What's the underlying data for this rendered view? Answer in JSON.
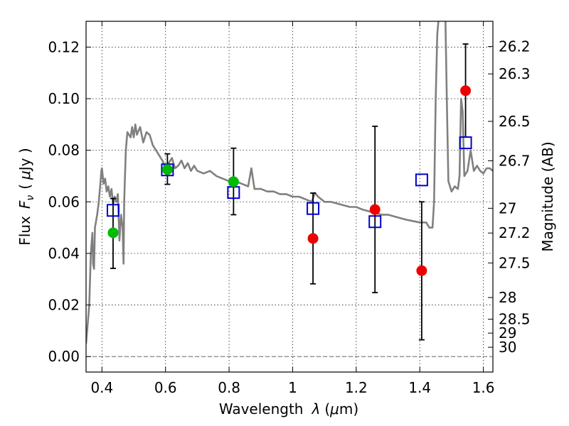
{
  "chart_data": {
    "type": "scatter",
    "xlabel_text": "Wavelength",
    "xlabel_symbol": "λ",
    "xlabel_unit_open": "(",
    "xlabel_unit_mu": "μ",
    "xlabel_unit_rest": "m)",
    "ylabel_text": "Flux",
    "ylabel_symbol": "F",
    "ylabel_subscript": "ν",
    "ylabel_unit_open": "(",
    "ylabel_unit_mu": "μ",
    "ylabel_unit_rest": "Jy )",
    "y2label": "Magnitude (AB)",
    "xlim": [
      0.35,
      1.63
    ],
    "ylim": [
      -0.006,
      0.13
    ],
    "xticks": [
      {
        "value": 0.4,
        "label": "0.4"
      },
      {
        "value": 0.6,
        "label": "0.6"
      },
      {
        "value": 0.8,
        "label": "0.8"
      },
      {
        "value": 1.0,
        "label": "1"
      },
      {
        "value": 1.2,
        "label": "1.2"
      },
      {
        "value": 1.4,
        "label": "1.4"
      },
      {
        "value": 1.6,
        "label": "1.6"
      }
    ],
    "yticks": [
      {
        "value": 0.0,
        "label": "0.00"
      },
      {
        "value": 0.02,
        "label": "0.02"
      },
      {
        "value": 0.04,
        "label": "0.04"
      },
      {
        "value": 0.06,
        "label": "0.06"
      },
      {
        "value": 0.08,
        "label": "0.08"
      },
      {
        "value": 0.1,
        "label": "0.10"
      },
      {
        "value": 0.12,
        "label": "0.12"
      }
    ],
    "mag_ticks": [
      {
        "flux": 0.1202,
        "label": "26.2"
      },
      {
        "flux": 0.1096,
        "label": "26.3"
      },
      {
        "flux": 0.0912,
        "label": "26.5"
      },
      {
        "flux": 0.0759,
        "label": "26.7"
      },
      {
        "flux": 0.0575,
        "label": "27"
      },
      {
        "flux": 0.0479,
        "label": "27.2"
      },
      {
        "flux": 0.0363,
        "label": "27.5"
      },
      {
        "flux": 0.0229,
        "label": "28"
      },
      {
        "flux": 0.0145,
        "label": "28.5"
      },
      {
        "flux": 0.0091,
        "label": "29"
      },
      {
        "flux": 0.0036,
        "label": "30"
      }
    ],
    "grid": true,
    "colors": {
      "model": "#808080",
      "green_points": "#00bb00",
      "red_points": "#ee0000",
      "model_squares": "#0000cc",
      "errorbars": "#000000"
    },
    "series": [
      {
        "kind": "line",
        "points": [
          [
            0.35,
            0.005
          ],
          [
            0.36,
            0.02
          ],
          [
            0.365,
            0.04
          ],
          [
            0.37,
            0.048
          ],
          [
            0.372,
            0.036
          ],
          [
            0.375,
            0.034
          ],
          [
            0.378,
            0.05
          ],
          [
            0.385,
            0.055
          ],
          [
            0.39,
            0.06
          ],
          [
            0.395,
            0.067
          ],
          [
            0.398,
            0.072
          ],
          [
            0.4,
            0.073
          ],
          [
            0.405,
            0.067
          ],
          [
            0.41,
            0.069
          ],
          [
            0.415,
            0.064
          ],
          [
            0.42,
            0.066
          ],
          [
            0.425,
            0.062
          ],
          [
            0.43,
            0.065
          ],
          [
            0.435,
            0.059
          ],
          [
            0.44,
            0.062
          ],
          [
            0.445,
            0.06
          ],
          [
            0.45,
            0.063
          ],
          [
            0.455,
            0.045
          ],
          [
            0.46,
            0.055
          ],
          [
            0.465,
            0.05
          ],
          [
            0.468,
            0.036
          ],
          [
            0.47,
            0.06
          ],
          [
            0.475,
            0.08
          ],
          [
            0.48,
            0.087
          ],
          [
            0.49,
            0.085
          ],
          [
            0.495,
            0.089
          ],
          [
            0.5,
            0.085
          ],
          [
            0.505,
            0.09
          ],
          [
            0.51,
            0.086
          ],
          [
            0.52,
            0.089
          ],
          [
            0.53,
            0.083
          ],
          [
            0.54,
            0.087
          ],
          [
            0.55,
            0.086
          ],
          [
            0.56,
            0.082
          ],
          [
            0.57,
            0.08
          ],
          [
            0.58,
            0.078
          ],
          [
            0.59,
            0.076
          ],
          [
            0.6,
            0.073
          ],
          [
            0.61,
            0.075
          ],
          [
            0.62,
            0.077
          ],
          [
            0.63,
            0.073
          ],
          [
            0.64,
            0.074
          ],
          [
            0.65,
            0.076
          ],
          [
            0.66,
            0.073
          ],
          [
            0.67,
            0.075
          ],
          [
            0.68,
            0.072
          ],
          [
            0.69,
            0.074
          ],
          [
            0.7,
            0.072
          ],
          [
            0.72,
            0.071
          ],
          [
            0.74,
            0.072
          ],
          [
            0.76,
            0.07
          ],
          [
            0.78,
            0.069
          ],
          [
            0.8,
            0.068
          ],
          [
            0.82,
            0.068
          ],
          [
            0.84,
            0.067
          ],
          [
            0.86,
            0.066
          ],
          [
            0.87,
            0.073
          ],
          [
            0.88,
            0.065
          ],
          [
            0.9,
            0.065
          ],
          [
            0.92,
            0.064
          ],
          [
            0.94,
            0.064
          ],
          [
            0.96,
            0.063
          ],
          [
            0.98,
            0.063
          ],
          [
            1.0,
            0.062
          ],
          [
            1.02,
            0.062
          ],
          [
            1.04,
            0.061
          ],
          [
            1.06,
            0.06
          ],
          [
            1.07,
            0.0635
          ],
          [
            1.08,
            0.062
          ],
          [
            1.1,
            0.06
          ],
          [
            1.12,
            0.06
          ],
          [
            1.15,
            0.059
          ],
          [
            1.18,
            0.058
          ],
          [
            1.2,
            0.058
          ],
          [
            1.22,
            0.057
          ],
          [
            1.25,
            0.056
          ],
          [
            1.28,
            0.055
          ],
          [
            1.3,
            0.055
          ],
          [
            1.33,
            0.054
          ],
          [
            1.36,
            0.053
          ],
          [
            1.4,
            0.052
          ],
          [
            1.42,
            0.052
          ],
          [
            1.43,
            0.05
          ],
          [
            1.44,
            0.05
          ],
          [
            1.445,
            0.06
          ],
          [
            1.45,
            0.1
          ],
          [
            1.455,
            0.125
          ],
          [
            1.46,
            0.132
          ],
          [
            1.47,
            0.132
          ],
          [
            1.48,
            0.135
          ],
          [
            1.485,
            0.1
          ],
          [
            1.49,
            0.068
          ],
          [
            1.5,
            0.064
          ],
          [
            1.51,
            0.066
          ],
          [
            1.52,
            0.065
          ],
          [
            1.525,
            0.07
          ],
          [
            1.53,
            0.1
          ],
          [
            1.535,
            0.095
          ],
          [
            1.54,
            0.07
          ],
          [
            1.55,
            0.072
          ],
          [
            1.56,
            0.08
          ],
          [
            1.57,
            0.072
          ],
          [
            1.58,
            0.074
          ],
          [
            1.59,
            0.072
          ],
          [
            1.6,
            0.071
          ],
          [
            1.61,
            0.073
          ],
          [
            1.62,
            0.073
          ],
          [
            1.63,
            0.072
          ]
        ]
      },
      {
        "kind": "errorbar",
        "points": [
          {
            "x": 0.435,
            "y": 0.048,
            "ylo": 0.0342,
            "yhi": 0.0613
          },
          {
            "x": 0.606,
            "y": 0.0725,
            "ylo": 0.0668,
            "yhi": 0.0786
          },
          {
            "x": 0.814,
            "y": 0.0678,
            "ylo": 0.055,
            "yhi": 0.0808
          },
          {
            "x": 1.064,
            "y": 0.0458,
            "ylo": 0.0282,
            "yhi": 0.0634
          },
          {
            "x": 1.259,
            "y": 0.057,
            "ylo": 0.0248,
            "yhi": 0.0893
          },
          {
            "x": 1.406,
            "y": 0.0333,
            "ylo": 0.0065,
            "yhi": 0.06
          },
          {
            "x": 1.544,
            "y": 0.1031,
            "ylo": 0.0851,
            "yhi": 0.1212
          }
        ]
      },
      {
        "kind": "scatter-green",
        "points": [
          [
            0.435,
            0.048
          ],
          [
            0.606,
            0.0725
          ],
          [
            0.814,
            0.0678
          ]
        ]
      },
      {
        "kind": "scatter-red",
        "points": [
          [
            1.064,
            0.0458
          ],
          [
            1.259,
            0.057
          ],
          [
            1.406,
            0.0333
          ],
          [
            1.544,
            0.1031
          ]
        ]
      },
      {
        "kind": "squares",
        "points": [
          [
            0.435,
            0.0567
          ],
          [
            0.606,
            0.0724
          ],
          [
            0.814,
            0.0636
          ],
          [
            1.064,
            0.0574
          ],
          [
            1.259,
            0.0523
          ],
          [
            1.406,
            0.0685
          ],
          [
            1.544,
            0.0829
          ]
        ]
      }
    ]
  }
}
